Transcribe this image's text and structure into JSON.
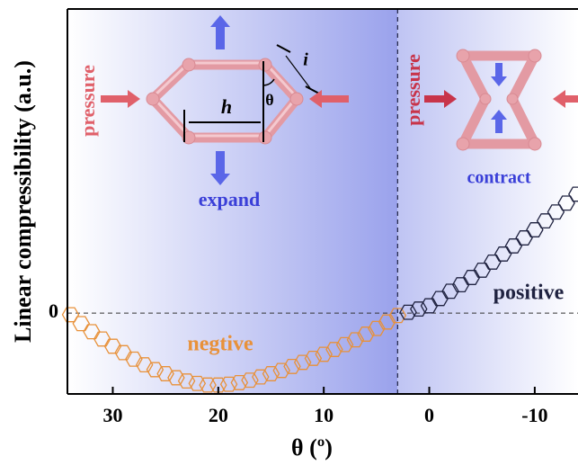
{
  "chart_data": {
    "type": "scatter",
    "xlabel": "θ (º)",
    "ylabel": "Linear compressibility (a.u.)",
    "xlim": [
      34.3,
      -14.1
    ],
    "xticks": [
      30,
      20,
      10,
      0,
      -10
    ],
    "ylim": [
      -1,
      3.76
    ],
    "yticks": [
      0
    ],
    "vline": 3,
    "series": [
      {
        "name": "negtive",
        "color": "#e8913a",
        "x": [
          34,
          33,
          32,
          31,
          30,
          29,
          28,
          27,
          26,
          25,
          24,
          23,
          22,
          21,
          20,
          19,
          18,
          17,
          16,
          15,
          14,
          13,
          12,
          11,
          10,
          9,
          8,
          7,
          6,
          5,
          4,
          3
        ],
        "values": [
          -0.02,
          -0.13,
          -0.23,
          -0.32,
          -0.41,
          -0.49,
          -0.57,
          -0.64,
          -0.7,
          -0.75,
          -0.8,
          -0.84,
          -0.87,
          -0.89,
          -0.89,
          -0.88,
          -0.86,
          -0.83,
          -0.79,
          -0.75,
          -0.71,
          -0.66,
          -0.61,
          -0.56,
          -0.51,
          -0.45,
          -0.39,
          -0.33,
          -0.26,
          -0.19,
          -0.11,
          -0.03
        ]
      },
      {
        "name": "positive",
        "color": "#1f2240",
        "x": [
          2,
          1,
          0,
          -1,
          -2,
          -3,
          -4,
          -5,
          -6,
          -7,
          -8,
          -9,
          -10,
          -11,
          -12,
          -13,
          -14
        ],
        "values": [
          0.01,
          0.05,
          0.09,
          0.18,
          0.27,
          0.35,
          0.44,
          0.53,
          0.63,
          0.73,
          0.83,
          0.93,
          1.03,
          1.14,
          1.25,
          1.36,
          1.47
        ]
      }
    ],
    "annotations": [
      "pressure",
      "h",
      "θ",
      "i",
      "expand",
      "pressure",
      "contract"
    ]
  }
}
